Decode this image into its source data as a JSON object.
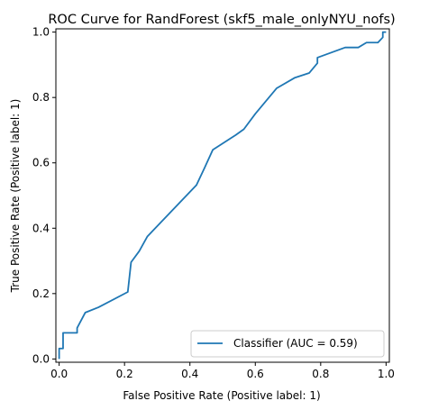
{
  "chart_data": {
    "type": "line",
    "title": "ROC Curve for RandForest (skf5_male_onlyNYU_nofs)",
    "xlabel": "False Positive Rate (Positive label: 1)",
    "ylabel": "True Positive Rate (Positive label: 1)",
    "xlim": [
      -0.01,
      1.01
    ],
    "ylim": [
      -0.01,
      1.01
    ],
    "xticks": [
      "0.0",
      "0.2",
      "0.4",
      "0.6",
      "0.8",
      "1.0"
    ],
    "yticks": [
      "0.0",
      "0.2",
      "0.4",
      "0.6",
      "0.8",
      "1.0"
    ],
    "grid": false,
    "legend_position": "lower-right",
    "series": [
      {
        "name": "Classifier (AUC = 0.59)",
        "color": "#1f77b4",
        "x": [
          0.0,
          0.0,
          0.012,
          0.012,
          0.055,
          0.055,
          0.08,
          0.12,
          0.21,
          0.22,
          0.245,
          0.27,
          0.42,
          0.445,
          0.47,
          0.54,
          0.565,
          0.6,
          0.665,
          0.72,
          0.765,
          0.79,
          0.79,
          0.875,
          0.915,
          0.94,
          0.975,
          0.99,
          0.99,
          1.0
        ],
        "y": [
          0.0,
          0.032,
          0.032,
          0.08,
          0.08,
          0.095,
          0.142,
          0.158,
          0.205,
          0.296,
          0.33,
          0.375,
          0.532,
          0.585,
          0.64,
          0.685,
          0.703,
          0.75,
          0.828,
          0.86,
          0.875,
          0.905,
          0.922,
          0.953,
          0.953,
          0.968,
          0.968,
          0.984,
          1.0,
          1.0
        ]
      }
    ]
  }
}
